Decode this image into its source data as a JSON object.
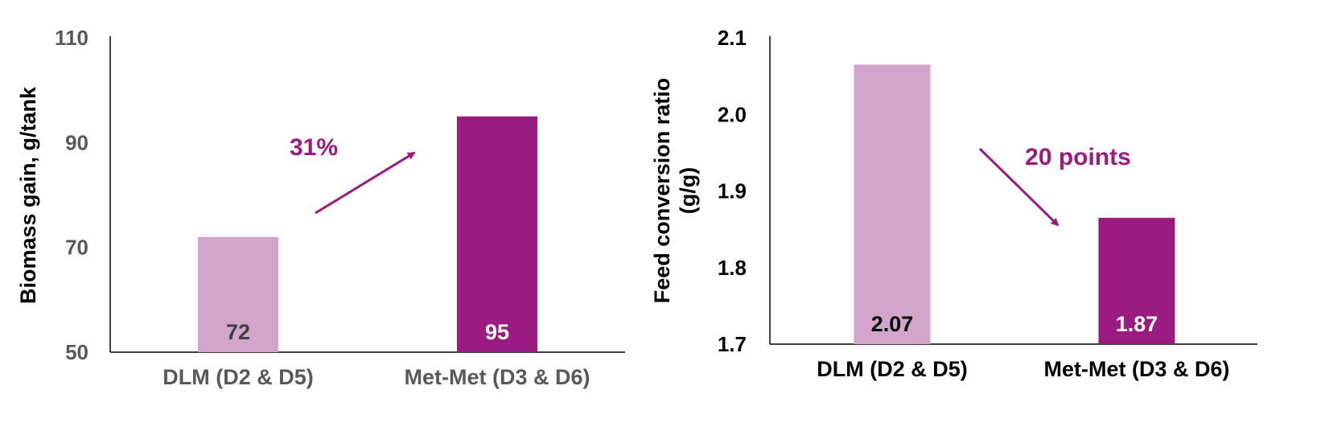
{
  "chart_data": [
    {
      "type": "bar",
      "categories": [
        "DLM (D2 & D5)",
        "Met-Met (D3 & D6)"
      ],
      "values": [
        72,
        95
      ],
      "data_labels": [
        "72",
        "95"
      ],
      "ylabel": "Biomass gain, g/tank",
      "xlabel": "",
      "ylim": [
        50,
        110
      ],
      "yticks": [
        "50",
        "70",
        "90",
        "110"
      ],
      "colors": [
        "#d4a5cc",
        "#9b1b82"
      ],
      "label_colors": [
        "#404040",
        "#ffffff"
      ],
      "tick_color": "#595959",
      "ylabel_color": "#000000",
      "annotation": {
        "text": "31%",
        "color": "#9b1b82",
        "arrow": "up"
      },
      "grid": false
    },
    {
      "type": "bar",
      "categories": [
        "DLM (D2 & D5)",
        "Met-Met (D3 & D6)"
      ],
      "values": [
        2.065,
        1.865
      ],
      "data_labels": [
        "2.07",
        "1.87"
      ],
      "ylabel": "Feed conversion ratio (g/g)",
      "ylabel_lines": [
        "Feed conversion ratio",
        "(g/g)"
      ],
      "xlabel": "",
      "ylim": [
        1.7,
        2.1
      ],
      "yticks": [
        "1.7",
        "1.8",
        "1.9",
        "2.0",
        "2.1"
      ],
      "colors": [
        "#d4a5cc",
        "#9b1b82"
      ],
      "label_colors": [
        "#000000",
        "#ffffff"
      ],
      "tick_color": "#000000",
      "ylabel_color": "#000000",
      "annotation": {
        "text": "20 points",
        "color": "#9b1b82",
        "arrow": "down"
      },
      "grid": false
    }
  ]
}
